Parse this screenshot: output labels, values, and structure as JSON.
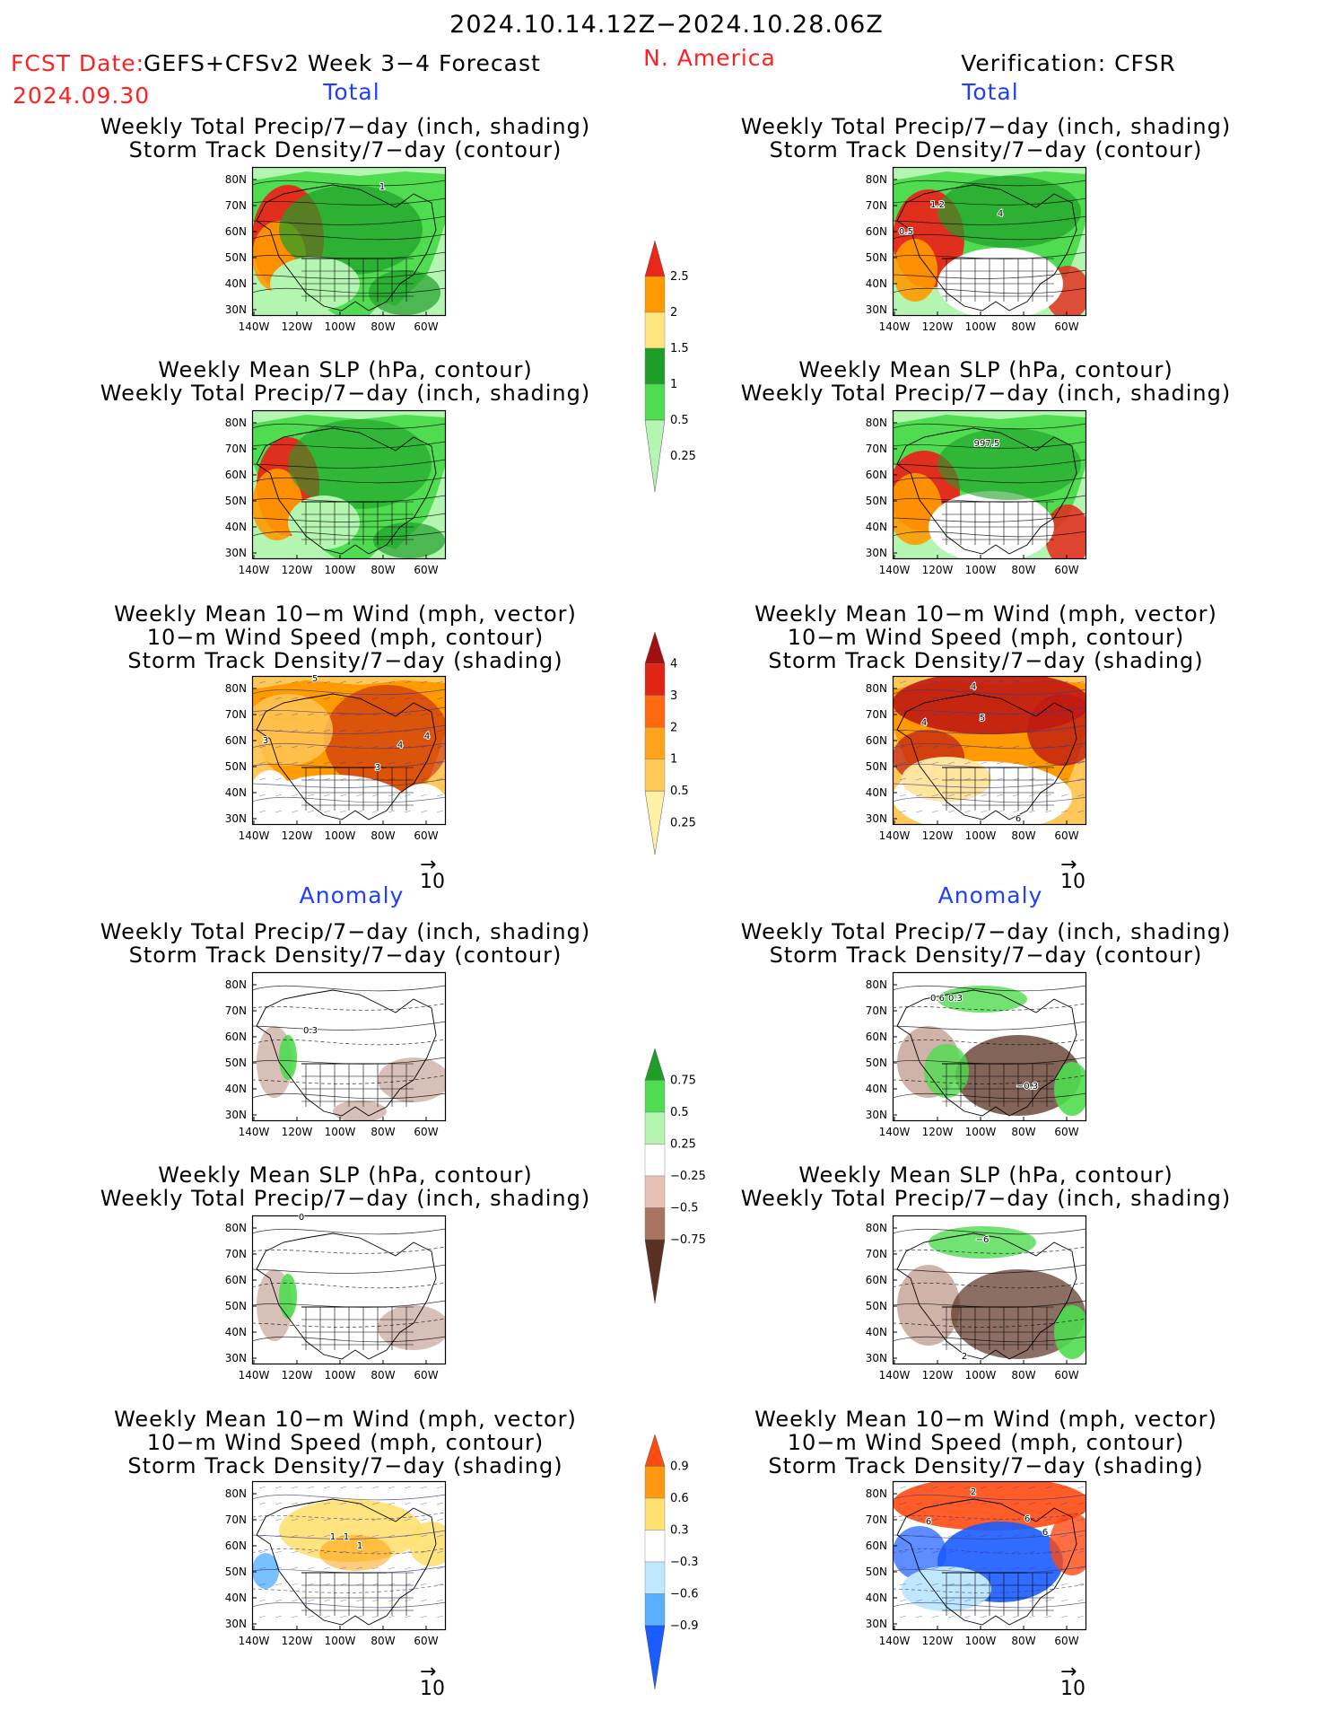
{
  "header": {
    "date_range": "2024.10.14.12Z−2024.10.28.06Z",
    "fcst_label": "FCST Date:",
    "fcst_model": "GEFS+CFSv2 Week 3−4 Forecast",
    "fcst_date": "2024.09.30",
    "region": "N. America",
    "verification": "Verification: CFSR"
  },
  "sections": {
    "total": "Total",
    "anomaly": "Anomaly"
  },
  "panel_titles": {
    "precip_storm": [
      "Weekly Total Precip/7−day (inch, shading)",
      "Storm Track Density/7−day (contour)"
    ],
    "slp_precip": [
      "Weekly Mean SLP (hPa, contour)",
      "Weekly Total Precip/7−day (inch, shading)"
    ],
    "wind_storm": [
      "Weekly Mean 10−m Wind (mph, vector)",
      "10−m Wind Speed (mph, contour)",
      "Storm Track Density/7−day (shading)"
    ]
  },
  "axes": {
    "lat_ticks": [
      "80N",
      "70N",
      "60N",
      "50N",
      "40N",
      "30N"
    ],
    "lon_ticks": [
      "140W",
      "120W",
      "100W",
      "80W",
      "60W"
    ]
  },
  "vector_ref": "10",
  "colorbars": {
    "precip_total": {
      "labels": [
        "2.5",
        "2",
        "1.5",
        "1",
        "0.5",
        "0.25"
      ],
      "colors": [
        "#e8261a",
        "#ff9a00",
        "#ffe680",
        "#1e9e28",
        "#4fdc50",
        "#b5f5b2"
      ]
    },
    "storm_total": {
      "labels": [
        "4",
        "3",
        "2",
        "1",
        "0.5",
        "0.25"
      ],
      "colors": [
        "#a01010",
        "#e02514",
        "#ff6a10",
        "#ffa21c",
        "#ffc85a",
        "#fff2a6"
      ]
    },
    "precip_anom": {
      "labels": [
        "0.75",
        "0.5",
        "0.25",
        "−0.25",
        "−0.5",
        "−0.75"
      ],
      "colors": [
        "#1e9e28",
        "#4fdc50",
        "#b5f5b2",
        "#ffffff",
        "#e6c2b4",
        "#a87462",
        "#5a3022"
      ]
    },
    "storm_anom": {
      "labels": [
        "0.9",
        "0.6",
        "0.3",
        "−0.3",
        "−0.6",
        "−0.9"
      ],
      "colors": [
        "#ff4a10",
        "#ff9a10",
        "#ffe070",
        "#ffffff",
        "#bfe8ff",
        "#58b0ff",
        "#1a5cff"
      ]
    }
  },
  "contour_labels": {
    "fc_total_precip": [
      "1"
    ],
    "obs_total_precip": [
      "1.2",
      "0.5",
      "4"
    ],
    "obs_total_slp": [
      "997.5"
    ],
    "fc_total_wind": [
      "5",
      "4",
      "4",
      "3",
      "3"
    ],
    "obs_total_wind": [
      "4",
      "4",
      "5",
      "6"
    ],
    "fc_anom_precip": [
      "0.3"
    ],
    "obs_anom_precip": [
      "0.6",
      "0.3",
      "−0.3"
    ],
    "fc_anom_slp": [
      "0"
    ],
    "obs_anom_slp": [
      "−6",
      "2"
    ],
    "fc_anom_wind": [
      "1",
      "1",
      "1"
    ],
    "obs_anom_wind": [
      "2",
      "6",
      "6",
      "6"
    ]
  },
  "palette": {
    "red_text": "#ff2020",
    "blue_text": "#1f3fff",
    "land_green_light": "#b5f5b2",
    "land_green": "#4fdc50",
    "land_green_dark": "#1e9e28",
    "precip_high": "#e8261a",
    "storm_orange": "#ff9a00",
    "storm_red": "#c01a12",
    "anom_brown": "#a87462",
    "anom_blue": "#1a5cff"
  }
}
